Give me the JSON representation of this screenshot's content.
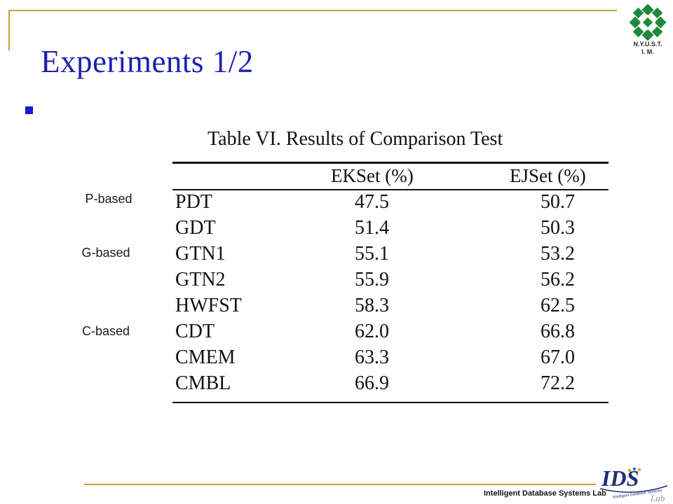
{
  "slide": {
    "title": "Experiments 1/2",
    "logo_top_line1": "N.Y.U.S.T.",
    "logo_top_line2": "I. M.",
    "footer_text": "Intelligent Database Systems Lab",
    "logo_ids_text": "IDS",
    "logo_ids_sub": "Lab",
    "logo_ids_tagline": "Intelligent Database Systems"
  },
  "side_labels": [
    "P-based",
    "G-based",
    "C-based"
  ],
  "table": {
    "caption": "Table VI.  Results of Comparison Test",
    "columns": [
      "EKSet (%)",
      "EJSet (%)"
    ],
    "rows": [
      {
        "name": "PDT",
        "ekset": "47.5",
        "ejset": "50.7"
      },
      {
        "name": "GDT",
        "ekset": "51.4",
        "ejset": "50.3"
      },
      {
        "name": "GTN1",
        "ekset": "55.1",
        "ejset": "53.2"
      },
      {
        "name": "GTN2",
        "ekset": "55.9",
        "ejset": "56.2"
      },
      {
        "name": "HWFST",
        "ekset": "58.3",
        "ejset": "62.5"
      },
      {
        "name": "CDT",
        "ekset": "62.0",
        "ejset": "66.8"
      },
      {
        "name": "CMEM",
        "ekset": "63.3",
        "ejset": "67.0"
      },
      {
        "name": "CMBL",
        "ekset": "66.9",
        "ejset": "72.2"
      }
    ]
  },
  "colors": {
    "title": "#1f1fb0",
    "accent_line": "#c9a13c",
    "bullet": "#1a1ac8",
    "logo_green": "#1f8a3a",
    "logo_ids_blue": "#1d2f7a"
  }
}
